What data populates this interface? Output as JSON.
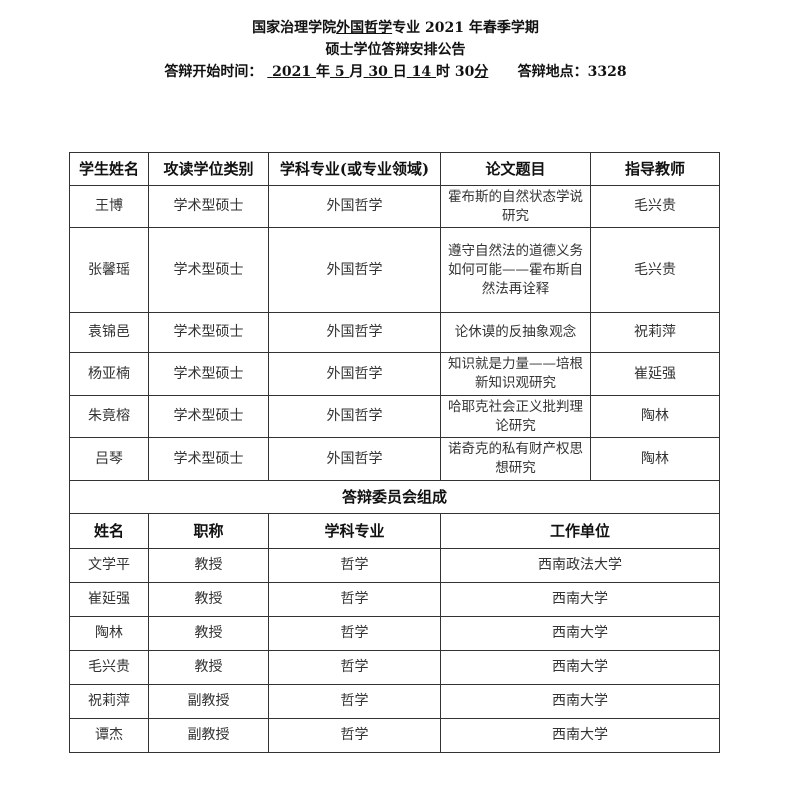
{
  "header": {
    "line1_pre": "国家治理学院",
    "line1_major": "外国哲学",
    "line1_post": "专业 2021 年春季学期",
    "line2": "硕士学位答辩安排公告",
    "time_label": "答辩开始时间：",
    "year": "2021",
    "year_unit": "年",
    "month": "5",
    "month_unit": "月",
    "day": "30",
    "day_unit": "日",
    "hour": "14",
    "hour_unit": "时",
    "minute": "30",
    "minute_unit": "分",
    "place_label": "答辩地点：",
    "place": "3328"
  },
  "students": {
    "columns": [
      "学生姓名",
      "攻读学位类别",
      "学科专业(或专业领域)",
      "论文题目",
      "指导教师"
    ],
    "rows": [
      [
        "王博",
        "学术型硕士",
        "外国哲学",
        "霍布斯的自然状态学说研究",
        "毛兴贵"
      ],
      [
        "张馨瑶",
        "学术型硕士",
        "外国哲学",
        "遵守自然法的道德义务如何可能——霍布斯自然法再诠释",
        "毛兴贵"
      ],
      [
        "袁锦邑",
        "学术型硕士",
        "外国哲学",
        "论休谟的反抽象观念",
        "祝莉萍"
      ],
      [
        "杨亚楠",
        "学术型硕士",
        "外国哲学",
        "知识就是力量——培根新知识观研究",
        "崔延强"
      ],
      [
        "朱竟榕",
        "学术型硕士",
        "外国哲学",
        "哈耶克社会正义批判理论研究",
        "陶林"
      ],
      [
        "吕琴",
        "学术型硕士",
        "外国哲学",
        "诺奇克的私有财产权思想研究",
        "陶林"
      ]
    ]
  },
  "committee": {
    "title": "答辩委员会组成",
    "columns": [
      "姓名",
      "职称",
      "学科专业",
      "工作单位"
    ],
    "rows": [
      [
        "文学平",
        "教授",
        "哲学",
        "西南政法大学"
      ],
      [
        "崔延强",
        "教授",
        "哲学",
        "西南大学"
      ],
      [
        "陶林",
        "教授",
        "哲学",
        "西南大学"
      ],
      [
        "毛兴贵",
        "教授",
        "哲学",
        "西南大学"
      ],
      [
        "祝莉萍",
        "副教授",
        "哲学",
        "西南大学"
      ],
      [
        "谭杰",
        "副教授",
        "哲学",
        "西南大学"
      ]
    ]
  }
}
